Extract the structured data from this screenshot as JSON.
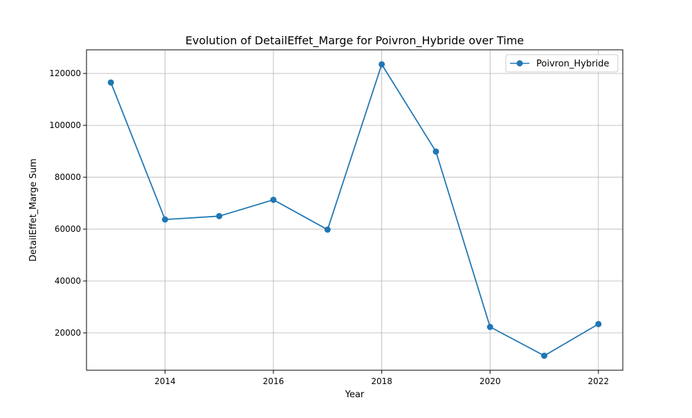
{
  "chart_data": {
    "type": "line",
    "title": "Evolution of DetailEffet_Marge for Poivron_Hybride over Time",
    "xlabel": "Year",
    "ylabel": "DetailEffet_Marge Sum",
    "x": [
      2013,
      2014,
      2015,
      2016,
      2017,
      2018,
      2019,
      2020,
      2021,
      2022
    ],
    "series": [
      {
        "name": "Poivron_Hybride",
        "color": "#1f77b4",
        "marker": "circle",
        "values": [
          116500,
          63700,
          65000,
          71300,
          59800,
          123500,
          89900,
          22300,
          11200,
          23400
        ]
      }
    ],
    "xlim": [
      2012.55,
      2022.45
    ],
    "ylim": [
      5600,
      129100
    ],
    "xticks": [
      2014,
      2016,
      2018,
      2020,
      2022
    ],
    "xtick_labels": [
      "2014",
      "2016",
      "2018",
      "2020",
      "2022"
    ],
    "yticks": [
      20000,
      40000,
      60000,
      80000,
      100000,
      120000
    ],
    "ytick_labels": [
      "20000",
      "40000",
      "60000",
      "80000",
      "100000",
      "120000"
    ],
    "grid": true,
    "legend_position": "upper right"
  }
}
